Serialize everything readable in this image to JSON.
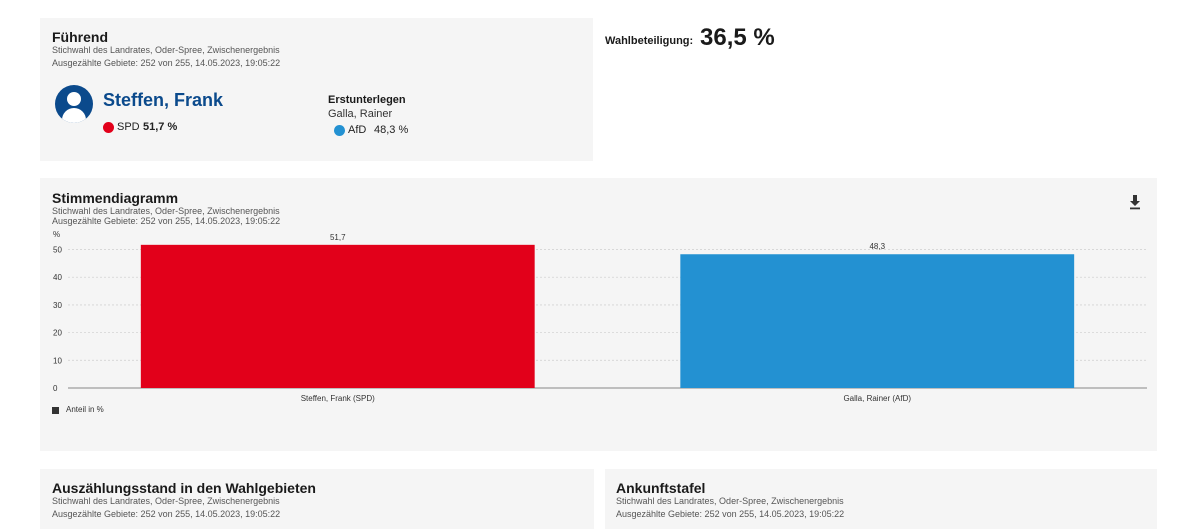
{
  "leading": {
    "title": "Führend",
    "subtitle": "Stichwahl des Landrates, Oder-Spree, Zwischenergebnis",
    "counted": "Ausgezählte Gebiete: 252 von 255, 14.05.2023, 19:05:22",
    "winner": {
      "name": "Steffen, Frank",
      "party": "SPD",
      "percent": "51,7 %",
      "color": "#e2001a"
    },
    "runner_up_label": "Erstunterlegen",
    "runner_up": {
      "name": "Galla, Rainer",
      "party": "AfD",
      "percent": "48,3 %",
      "color": "#2391d2"
    },
    "avatar_icon": "user-avatar-icon"
  },
  "turnout": {
    "label": "Wahlbeteiligung:",
    "value": "36,5 %"
  },
  "chart_panel": {
    "title": "Stimmendiagramm",
    "subtitle": "Stichwahl des Landrates, Oder-Spree, Zwischenergebnis",
    "counted": "Ausgezählte Gebiete: 252 von 255, 14.05.2023, 19:05:22",
    "download_icon": "download-icon",
    "legend_label": "Anteil in %"
  },
  "chart_data": {
    "type": "bar",
    "categories": [
      "Steffen, Frank (SPD)",
      "Galla, Rainer (AfD)"
    ],
    "values": [
      51.7,
      48.3
    ],
    "value_labels": [
      "51,7",
      "48,3"
    ],
    "colors": [
      "#e2001a",
      "#2391d2"
    ],
    "ylabel": "%",
    "ylim": [
      0,
      52
    ],
    "yticks": [
      0,
      10,
      20,
      30,
      40,
      50
    ],
    "grid": true,
    "legend": [
      "Anteil in %"
    ],
    "legend_position": "bottom-left"
  },
  "count_panel": {
    "title": "Auszählungsstand in den Wahlgebieten",
    "subtitle": "Stichwahl des Landrates, Oder-Spree, Zwischenergebnis",
    "counted": "Ausgezählte Gebiete: 252 von 255, 14.05.2023, 19:05:22"
  },
  "arrival_panel": {
    "title": "Ankunftstafel",
    "subtitle": "Stichwahl des Landrates, Oder-Spree, Zwischenergebnis",
    "counted": "Ausgezählte Gebiete: 252 von 255, 14.05.2023, 19:05:22"
  }
}
